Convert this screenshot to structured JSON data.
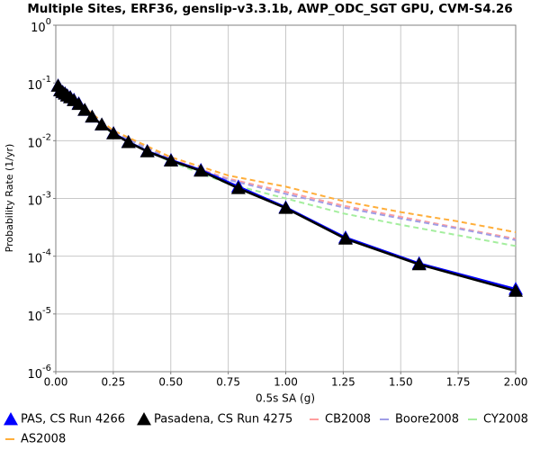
{
  "chart_data": {
    "type": "line",
    "title": "Multiple Sites, ERF36, genslip-v3.3.1b, AWP_ODC_SGT GPU, CVM-S4.26",
    "x_label": "0.5s SA (g)",
    "y_label": "Probability Rate (1/yr)",
    "xlim": [
      0,
      2
    ],
    "ylim": [
      1e-06,
      1
    ],
    "log_y": true,
    "grid": true,
    "xticks": [
      {
        "value": 0,
        "label": "0.00"
      },
      {
        "value": 0.25,
        "label": "0.25"
      },
      {
        "value": 0.5,
        "label": "0.50"
      },
      {
        "value": 0.75,
        "label": "0.75"
      },
      {
        "value": 1,
        "label": "1.00"
      },
      {
        "value": 1.25,
        "label": "1.25"
      },
      {
        "value": 1.5,
        "label": "1.50"
      },
      {
        "value": 1.75,
        "label": "1.75"
      },
      {
        "value": 2,
        "label": "2.00"
      }
    ],
    "yticks": [
      {
        "value": 1,
        "label": "10",
        "exponent": "0"
      },
      {
        "value": 0.1,
        "label": "10",
        "exponent": "-1"
      },
      {
        "value": 0.01,
        "label": "10",
        "exponent": "-2"
      },
      {
        "value": 0.001,
        "label": "10",
        "exponent": "-3"
      },
      {
        "value": 0.0001,
        "label": "10",
        "exponent": "-4"
      },
      {
        "value": 1e-05,
        "label": "10",
        "exponent": "-5"
      },
      {
        "value": 1e-06,
        "label": "10",
        "exponent": "-6"
      }
    ],
    "series": [
      {
        "name": "PAS, CS Run 4266",
        "color": "#0000ff",
        "marker": "triangle",
        "dashed": false,
        "x": [
          0.01,
          0.02,
          0.03,
          0.04,
          0.05,
          0.063,
          0.079,
          0.1,
          0.126,
          0.158,
          0.2,
          0.251,
          0.316,
          0.398,
          0.501,
          0.631,
          0.794,
          1.0,
          1.26,
          1.58,
          2.0
        ],
        "values": [
          0.09,
          0.075,
          0.07,
          0.066,
          0.061,
          0.057,
          0.051,
          0.044,
          0.034,
          0.026,
          0.019,
          0.0135,
          0.0095,
          0.0066,
          0.0046,
          0.0031,
          0.0016,
          0.0007,
          0.00021,
          7.5e-05,
          2.7e-05
        ]
      },
      {
        "name": "Pasadena, CS Run 4275",
        "color": "#000000",
        "marker": "triangle",
        "dashed": false,
        "x": [
          0.01,
          0.02,
          0.03,
          0.04,
          0.05,
          0.063,
          0.079,
          0.1,
          0.126,
          0.158,
          0.2,
          0.251,
          0.316,
          0.398,
          0.501,
          0.631,
          0.794,
          1.0,
          1.26,
          1.58,
          2.0
        ],
        "values": [
          0.089,
          0.074,
          0.069,
          0.065,
          0.06,
          0.056,
          0.05,
          0.043,
          0.034,
          0.026,
          0.019,
          0.0133,
          0.0094,
          0.0065,
          0.0045,
          0.003,
          0.0015,
          0.00068,
          0.0002,
          7.2e-05,
          2.5e-05
        ]
      },
      {
        "name": "CB2008",
        "color": "#ff9e9e",
        "marker": "none",
        "dashed": true,
        "x": [
          0.01,
          0.1,
          0.25,
          0.5,
          0.75,
          1.0,
          1.25,
          1.5,
          1.75,
          2.0
        ],
        "values": [
          0.083,
          0.043,
          0.014,
          0.0048,
          0.0022,
          0.0013,
          0.00075,
          0.00048,
          0.00031,
          0.0002
        ]
      },
      {
        "name": "Boore2008",
        "color": "#a09ee6",
        "marker": "none",
        "dashed": true,
        "x": [
          0.01,
          0.1,
          0.25,
          0.5,
          0.75,
          1.0,
          1.25,
          1.5,
          1.75,
          2.0
        ],
        "values": [
          0.083,
          0.043,
          0.014,
          0.0047,
          0.0021,
          0.0012,
          0.0007,
          0.00045,
          0.0003,
          0.00019
        ]
      },
      {
        "name": "CY2008",
        "color": "#a4ee9e",
        "marker": "none",
        "dashed": true,
        "x": [
          0.01,
          0.1,
          0.25,
          0.5,
          0.75,
          1.0,
          1.25,
          1.5,
          1.75,
          2.0
        ],
        "values": [
          0.08,
          0.04,
          0.013,
          0.0043,
          0.0018,
          0.001,
          0.00055,
          0.00035,
          0.00023,
          0.00015
        ]
      },
      {
        "name": "AS2008",
        "color": "#ffae3a",
        "marker": "none",
        "dashed": true,
        "x": [
          0.01,
          0.1,
          0.25,
          0.5,
          0.75,
          1.0,
          1.25,
          1.5,
          1.75,
          2.0
        ],
        "values": [
          0.085,
          0.045,
          0.015,
          0.0052,
          0.0025,
          0.0016,
          0.0009,
          0.00058,
          0.0004,
          0.00026
        ]
      }
    ]
  }
}
